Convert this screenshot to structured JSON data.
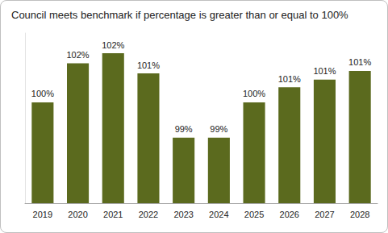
{
  "chart_data": {
    "type": "bar",
    "title": "Council meets benchmark if percentage is greater than or equal to 100%",
    "categories": [
      "2019",
      "2020",
      "2021",
      "2022",
      "2023",
      "2024",
      "2025",
      "2026",
      "2027",
      "2028"
    ],
    "values": [
      100.0,
      101.55,
      101.95,
      101.15,
      98.6,
      98.6,
      100.0,
      100.6,
      100.9,
      101.25
    ],
    "value_labels": [
      "100%",
      "102%",
      "102%",
      "101%",
      "99%",
      "99%",
      "100%",
      "101%",
      "101%",
      "101%"
    ],
    "color": "#5b6a1e",
    "ylim": [
      96,
      102.75
    ],
    "grid": false,
    "data_labels": true,
    "tick_labels": "x"
  }
}
